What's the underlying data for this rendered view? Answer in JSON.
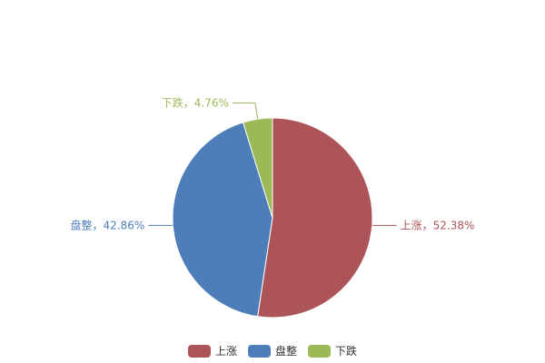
{
  "chart_data": {
    "type": "pie",
    "title": "",
    "start_angle": "top, clockwise",
    "slices": [
      {
        "name": "上涨",
        "value": 52.38,
        "label": "上涨，52.38%",
        "color": "#AD5458"
      },
      {
        "name": "盘整",
        "value": 42.86,
        "label": "盘整，42.86%",
        "color": "#4E7EBA"
      },
      {
        "name": "下跌",
        "value": 4.76,
        "label": "下跌，4.76%",
        "color": "#9BBA57"
      }
    ],
    "legend": {
      "placement": "bottom",
      "items": [
        "上涨",
        "盘整",
        "下跌"
      ]
    }
  }
}
